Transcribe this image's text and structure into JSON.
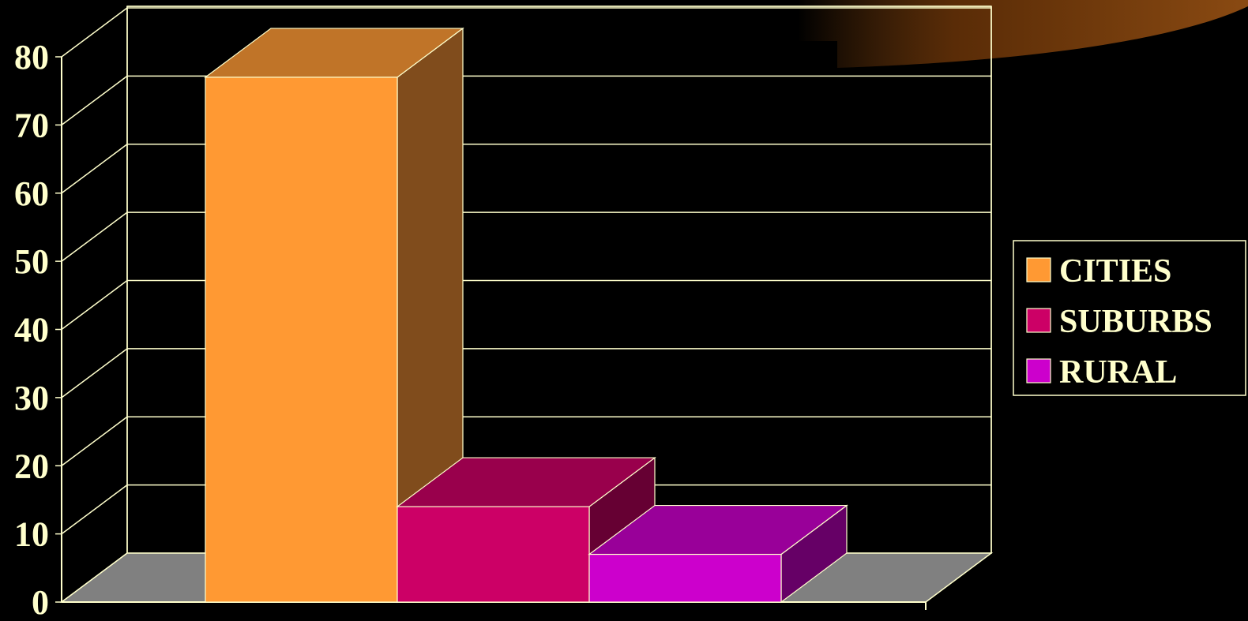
{
  "colors": {
    "background": "#000000",
    "text": "#FFFFCC",
    "gridline": "#FFFFCC",
    "floor": "#808080",
    "glow": "#8A4A12"
  },
  "chart_data": {
    "type": "bar",
    "style": "3d",
    "title": "",
    "xlabel": "",
    "ylabel": "",
    "ylim": [
      0,
      80
    ],
    "yticks": [
      0,
      10,
      20,
      30,
      40,
      50,
      60,
      70,
      80
    ],
    "grid": true,
    "legend_position": "right",
    "series": [
      {
        "name": "CITIES",
        "value": 77,
        "color": "#FF9933",
        "top_color": "#C07428",
        "side_color": "#804C1C"
      },
      {
        "name": "SUBURBS",
        "value": 14,
        "color": "#CC0066",
        "top_color": "#99004C",
        "side_color": "#660033"
      },
      {
        "name": "RURAL",
        "value": 7,
        "color": "#CC00CC",
        "top_color": "#990099",
        "side_color": "#660066"
      }
    ]
  }
}
